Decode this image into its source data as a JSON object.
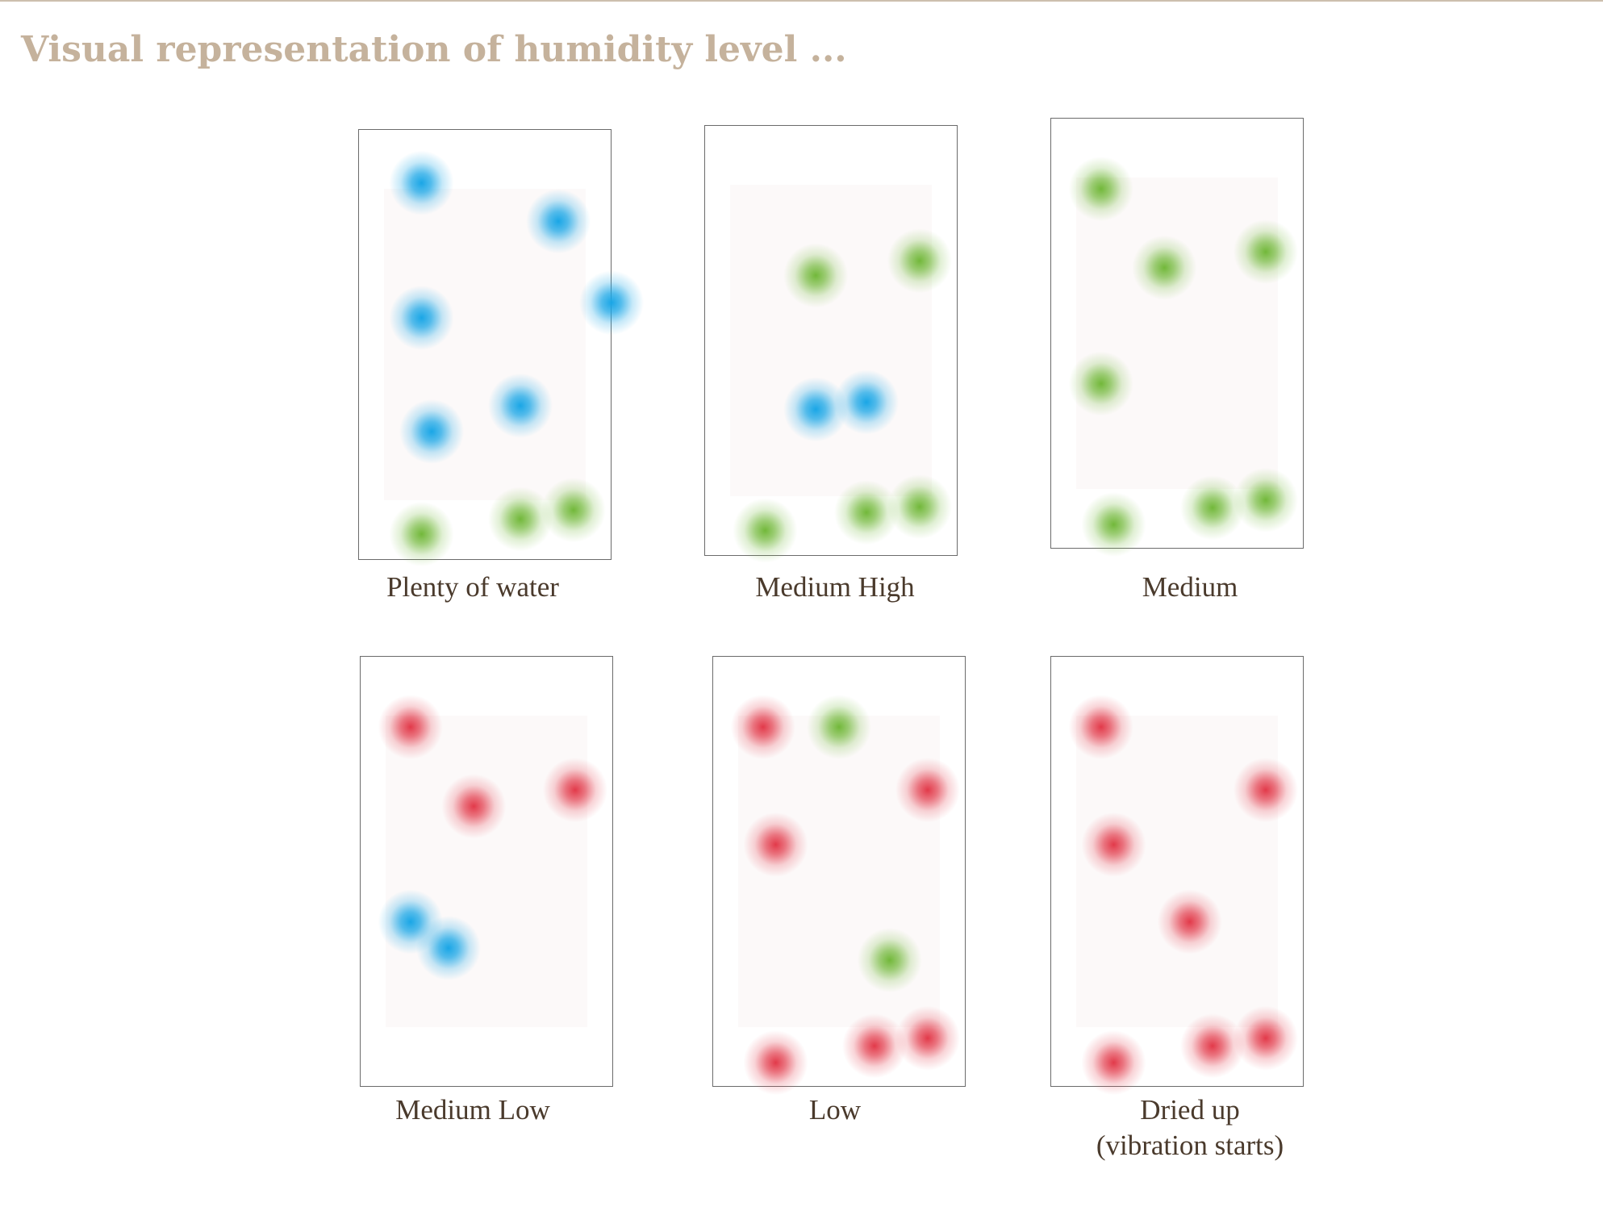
{
  "title": "Visual representation of humidity level ...",
  "colors": {
    "water": "#1aa6e6",
    "medium": "#72b83a",
    "dry": "#e23a4a"
  },
  "panels": [
    {
      "caption": "Plenty of water",
      "dots": [
        [
          "water",
          0.25,
          0.125
        ],
        [
          "water",
          0.79,
          0.214
        ],
        [
          "water",
          1.0,
          0.403
        ],
        [
          "water",
          0.25,
          0.438
        ],
        [
          "water",
          0.64,
          0.642
        ],
        [
          "water",
          0.29,
          0.702
        ],
        [
          "medium",
          0.25,
          0.94
        ],
        [
          "medium",
          0.64,
          0.905
        ],
        [
          "medium",
          0.85,
          0.884
        ]
      ]
    },
    {
      "caption": "Medium High",
      "dots": [
        [
          "medium",
          0.44,
          0.349
        ],
        [
          "medium",
          0.85,
          0.315
        ],
        [
          "water",
          0.44,
          0.66
        ],
        [
          "water",
          0.64,
          0.643
        ],
        [
          "medium",
          0.24,
          0.941
        ],
        [
          "medium",
          0.64,
          0.899
        ],
        [
          "medium",
          0.85,
          0.886
        ]
      ]
    },
    {
      "caption": "Medium",
      "dots": [
        [
          "medium",
          0.2,
          0.165
        ],
        [
          "medium",
          0.45,
          0.348
        ],
        [
          "medium",
          0.85,
          0.311
        ],
        [
          "medium",
          0.2,
          0.617
        ],
        [
          "medium",
          0.25,
          0.944
        ],
        [
          "medium",
          0.64,
          0.905
        ],
        [
          "medium",
          0.85,
          0.887
        ]
      ]
    },
    {
      "caption": "Medium Low",
      "dots": [
        [
          "dry",
          0.2,
          0.165
        ],
        [
          "dry",
          0.45,
          0.349
        ],
        [
          "dry",
          0.85,
          0.311
        ],
        [
          "water",
          0.2,
          0.617
        ],
        [
          "water",
          0.35,
          0.678
        ]
      ]
    },
    {
      "caption": "Low",
      "dots": [
        [
          "dry",
          0.2,
          0.165
        ],
        [
          "medium",
          0.5,
          0.165
        ],
        [
          "dry",
          0.85,
          0.311
        ],
        [
          "dry",
          0.25,
          0.438
        ],
        [
          "medium",
          0.7,
          0.706
        ],
        [
          "dry",
          0.25,
          0.944
        ],
        [
          "dry",
          0.64,
          0.905
        ],
        [
          "dry",
          0.85,
          0.887
        ]
      ]
    },
    {
      "caption": "Dried up\n(vibration starts)",
      "dots": [
        [
          "dry",
          0.2,
          0.165
        ],
        [
          "dry",
          0.85,
          0.311
        ],
        [
          "dry",
          0.25,
          0.438
        ],
        [
          "dry",
          0.55,
          0.617
        ],
        [
          "dry",
          0.25,
          0.944
        ],
        [
          "dry",
          0.64,
          0.905
        ],
        [
          "dry",
          0.85,
          0.887
        ]
      ]
    }
  ]
}
